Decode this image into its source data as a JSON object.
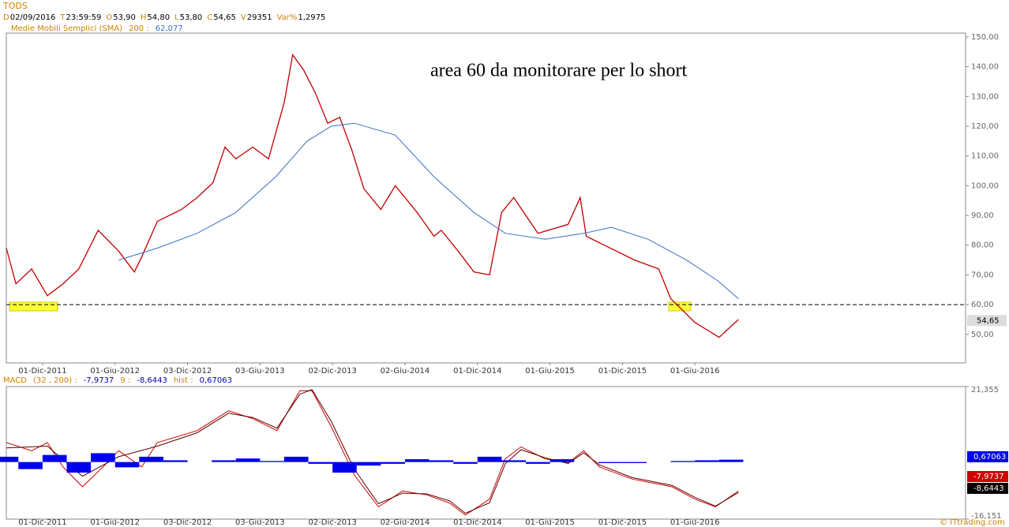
{
  "header": {
    "title": "TODS",
    "fields": [
      {
        "key": "D",
        "value": "02/09/2016"
      },
      {
        "key": "T",
        "value": "23:59:59"
      },
      {
        "key": "O",
        "value": "53,90"
      },
      {
        "key": "H",
        "value": "54,80"
      },
      {
        "key": "L",
        "value": "53,80"
      },
      {
        "key": "C",
        "value": "54,65"
      },
      {
        "key": "V",
        "value": "29351"
      },
      {
        "key": "Var%",
        "value": "1,2975"
      }
    ],
    "copyright": "© ITtrading.com"
  },
  "chart_data": [
    {
      "type": "line",
      "annotation": "area 60 da monitorare per lo short",
      "reference_line": 60,
      "current_value": 54.65,
      "current_label": "54,65",
      "xlim": [
        0,
        79.4
      ],
      "xticks": [
        {
          "value": 3,
          "label": "01-Dic-2011"
        },
        {
          "value": 9,
          "label": "01-Giu-2012"
        },
        {
          "value": 15,
          "label": "03-Dic-2012"
        },
        {
          "value": 21,
          "label": "03-Giu-2013"
        },
        {
          "value": 27,
          "label": "02-Dic-2013"
        },
        {
          "value": 33,
          "label": "02-Giu-2014"
        },
        {
          "value": 39,
          "label": "01-Dic-2014"
        },
        {
          "value": 45,
          "label": "01-Giu-2015"
        },
        {
          "value": 51,
          "label": "01-Dic-2015"
        },
        {
          "value": 57,
          "label": "01-Giu-2016"
        }
      ],
      "ylim": [
        40.4,
        151.3
      ],
      "yticks": [
        {
          "value": 50,
          "label": "50,00"
        },
        {
          "value": 60,
          "label": "60,00"
        },
        {
          "value": 70,
          "label": "70,00"
        },
        {
          "value": 80,
          "label": "80,00"
        },
        {
          "value": 90,
          "label": "90,00"
        },
        {
          "value": 100,
          "label": "100,00"
        },
        {
          "value": 110,
          "label": "110,00"
        },
        {
          "value": 120,
          "label": "120,00"
        },
        {
          "value": 130,
          "label": "130,00"
        },
        {
          "value": 140,
          "label": "140,00"
        },
        {
          "value": 150,
          "label": "150,00"
        }
      ],
      "series": [
        {
          "color": "#c00000",
          "x": [
            0,
            0.8,
            2.1,
            3.4,
            4.7,
            6,
            7.6,
            9.3,
            10.6,
            11.2,
            12.5,
            14.5,
            15.8,
            17.1,
            18.1,
            19,
            20.4,
            21.7,
            23,
            23.7,
            24.6,
            25.6,
            26.6,
            27.6,
            28.6,
            29.6,
            31,
            32.2,
            34,
            35.4,
            36,
            37.4,
            38.7,
            40,
            41,
            42,
            44,
            46.5,
            47.5,
            48,
            49,
            52,
            54,
            55,
            57,
            59,
            60.6
          ],
          "values": [
            79,
            67,
            72,
            63,
            67,
            72,
            85,
            78,
            71,
            76,
            88,
            92,
            96,
            101,
            113,
            109,
            113,
            109,
            128,
            144,
            139,
            131,
            121,
            123,
            112,
            99,
            92,
            100,
            91,
            83,
            85,
            78,
            71,
            70,
            91,
            96,
            84,
            87,
            96,
            83,
            81,
            75,
            72,
            62,
            54,
            49,
            55
          ]
        },
        {
          "name": "Medie Mobili Semplici (SMA)",
          "params": "200 :",
          "last_label": "62,077",
          "color": "#3a6fc4",
          "x": [
            9.3,
            12.5,
            15.8,
            19,
            22.3,
            24.9,
            26.9,
            28.8,
            32.2,
            35.4,
            38.7,
            41.3,
            44.6,
            47.8,
            50.1,
            53.1,
            56.3,
            58.9,
            60.6
          ],
          "values": [
            75,
            79,
            84,
            91,
            103,
            115,
            120,
            121,
            117,
            103,
            91,
            84,
            82,
            84,
            86,
            82,
            75,
            68,
            62
          ]
        }
      ]
    },
    {
      "type": "line",
      "xlim": [
        0,
        79.4
      ],
      "xticks": [
        {
          "value": 3,
          "label": "01-Dic-2011"
        },
        {
          "value": 9,
          "label": "01-Giu-2012"
        },
        {
          "value": 15,
          "label": "03-Dic-2012"
        },
        {
          "value": 21,
          "label": "03-Giu-2013"
        },
        {
          "value": 27,
          "label": "02-Dic-2013"
        },
        {
          "value": 33,
          "label": "02-Giu-2014"
        },
        {
          "value": 39,
          "label": "01-Dic-2014"
        },
        {
          "value": 45,
          "label": "01-Giu-2015"
        },
        {
          "value": 51,
          "label": "01-Dic-2015"
        },
        {
          "value": 57,
          "label": "01-Giu-2016"
        }
      ],
      "ylim": [
        -16.151,
        21.355
      ],
      "yticks": [
        {
          "value": 21.355,
          "label": "21,355"
        },
        {
          "value": -16.151,
          "label": "-16,151"
        }
      ],
      "series": [
        {
          "name": "MACD",
          "params": "(32 , 200) :",
          "last_label": "-7,9737",
          "color": "#d00000",
          "x": [
            0,
            2.1,
            3.4,
            4.7,
            6.3,
            8,
            9.3,
            11.2,
            12.5,
            15.8,
            18.4,
            20.4,
            22.4,
            24.3,
            25.3,
            26.9,
            28.8,
            30.8,
            32.8,
            34.8,
            36.7,
            38,
            40,
            41.3,
            42.6,
            44.6,
            46.5,
            47.8,
            49.1,
            51.8,
            55.1,
            57,
            58.7,
            60.6
          ],
          "values": [
            5.5,
            3.2,
            5.5,
            -1.4,
            -7,
            -1.4,
            3.2,
            -1.4,
            5.5,
            8.9,
            14.5,
            12.3,
            8.9,
            20.2,
            20.2,
            10,
            -3.6,
            -12.7,
            -8.2,
            -9.3,
            -11.6,
            -15,
            -10.5,
            0.9,
            4.3,
            0.9,
            -0.2,
            3.2,
            -1.4,
            -4.8,
            -7,
            -10.5,
            -12.7,
            -8.2
          ]
        },
        {
          "params": "9 :",
          "last_label": "-8,6443",
          "color": "#5a0000",
          "x": [
            0,
            3.4,
            6.3,
            9.3,
            12.5,
            15.8,
            18.4,
            20.4,
            22.4,
            24.3,
            25.3,
            26.9,
            28.8,
            30.8,
            32.8,
            34.8,
            36.7,
            38,
            40,
            41.3,
            42.6,
            44.6,
            46.5,
            47.8,
            49.1,
            51.8,
            55.1,
            57,
            58.7,
            60.6
          ],
          "values": [
            4,
            4.5,
            -4,
            1.5,
            4.5,
            8.3,
            13.8,
            12.6,
            9.6,
            19.2,
            20.5,
            11.5,
            -2,
            -11.8,
            -8.8,
            -9,
            -11,
            -14.5,
            -11.5,
            -0.5,
            3.5,
            1.2,
            -0.4,
            2.6,
            -0.8,
            -4.4,
            -6.6,
            -10,
            -12.5,
            -8.6
          ]
        },
        {
          "name": "hist :",
          "last_label": "0,67063",
          "kind": "bar",
          "color": "#0000ee",
          "x": [
            0,
            2,
            4,
            6,
            8,
            10,
            12,
            14,
            16,
            18,
            20,
            22,
            24,
            26,
            28,
            30,
            32,
            34,
            36,
            38,
            40,
            42,
            44,
            46,
            48,
            50,
            52,
            54,
            56,
            58,
            60
          ],
          "values": [
            1.5,
            -2,
            2,
            -3,
            2.5,
            -1.5,
            1.5,
            0.5,
            0,
            0.5,
            1,
            0.3,
            1.5,
            -0.5,
            -3,
            -1,
            -0.5,
            0.8,
            0.5,
            -0.5,
            1.5,
            0.5,
            -0.5,
            0.8,
            0,
            -0.3,
            -0.3,
            0,
            0.3,
            0.5,
            0.67
          ]
        }
      ]
    }
  ]
}
